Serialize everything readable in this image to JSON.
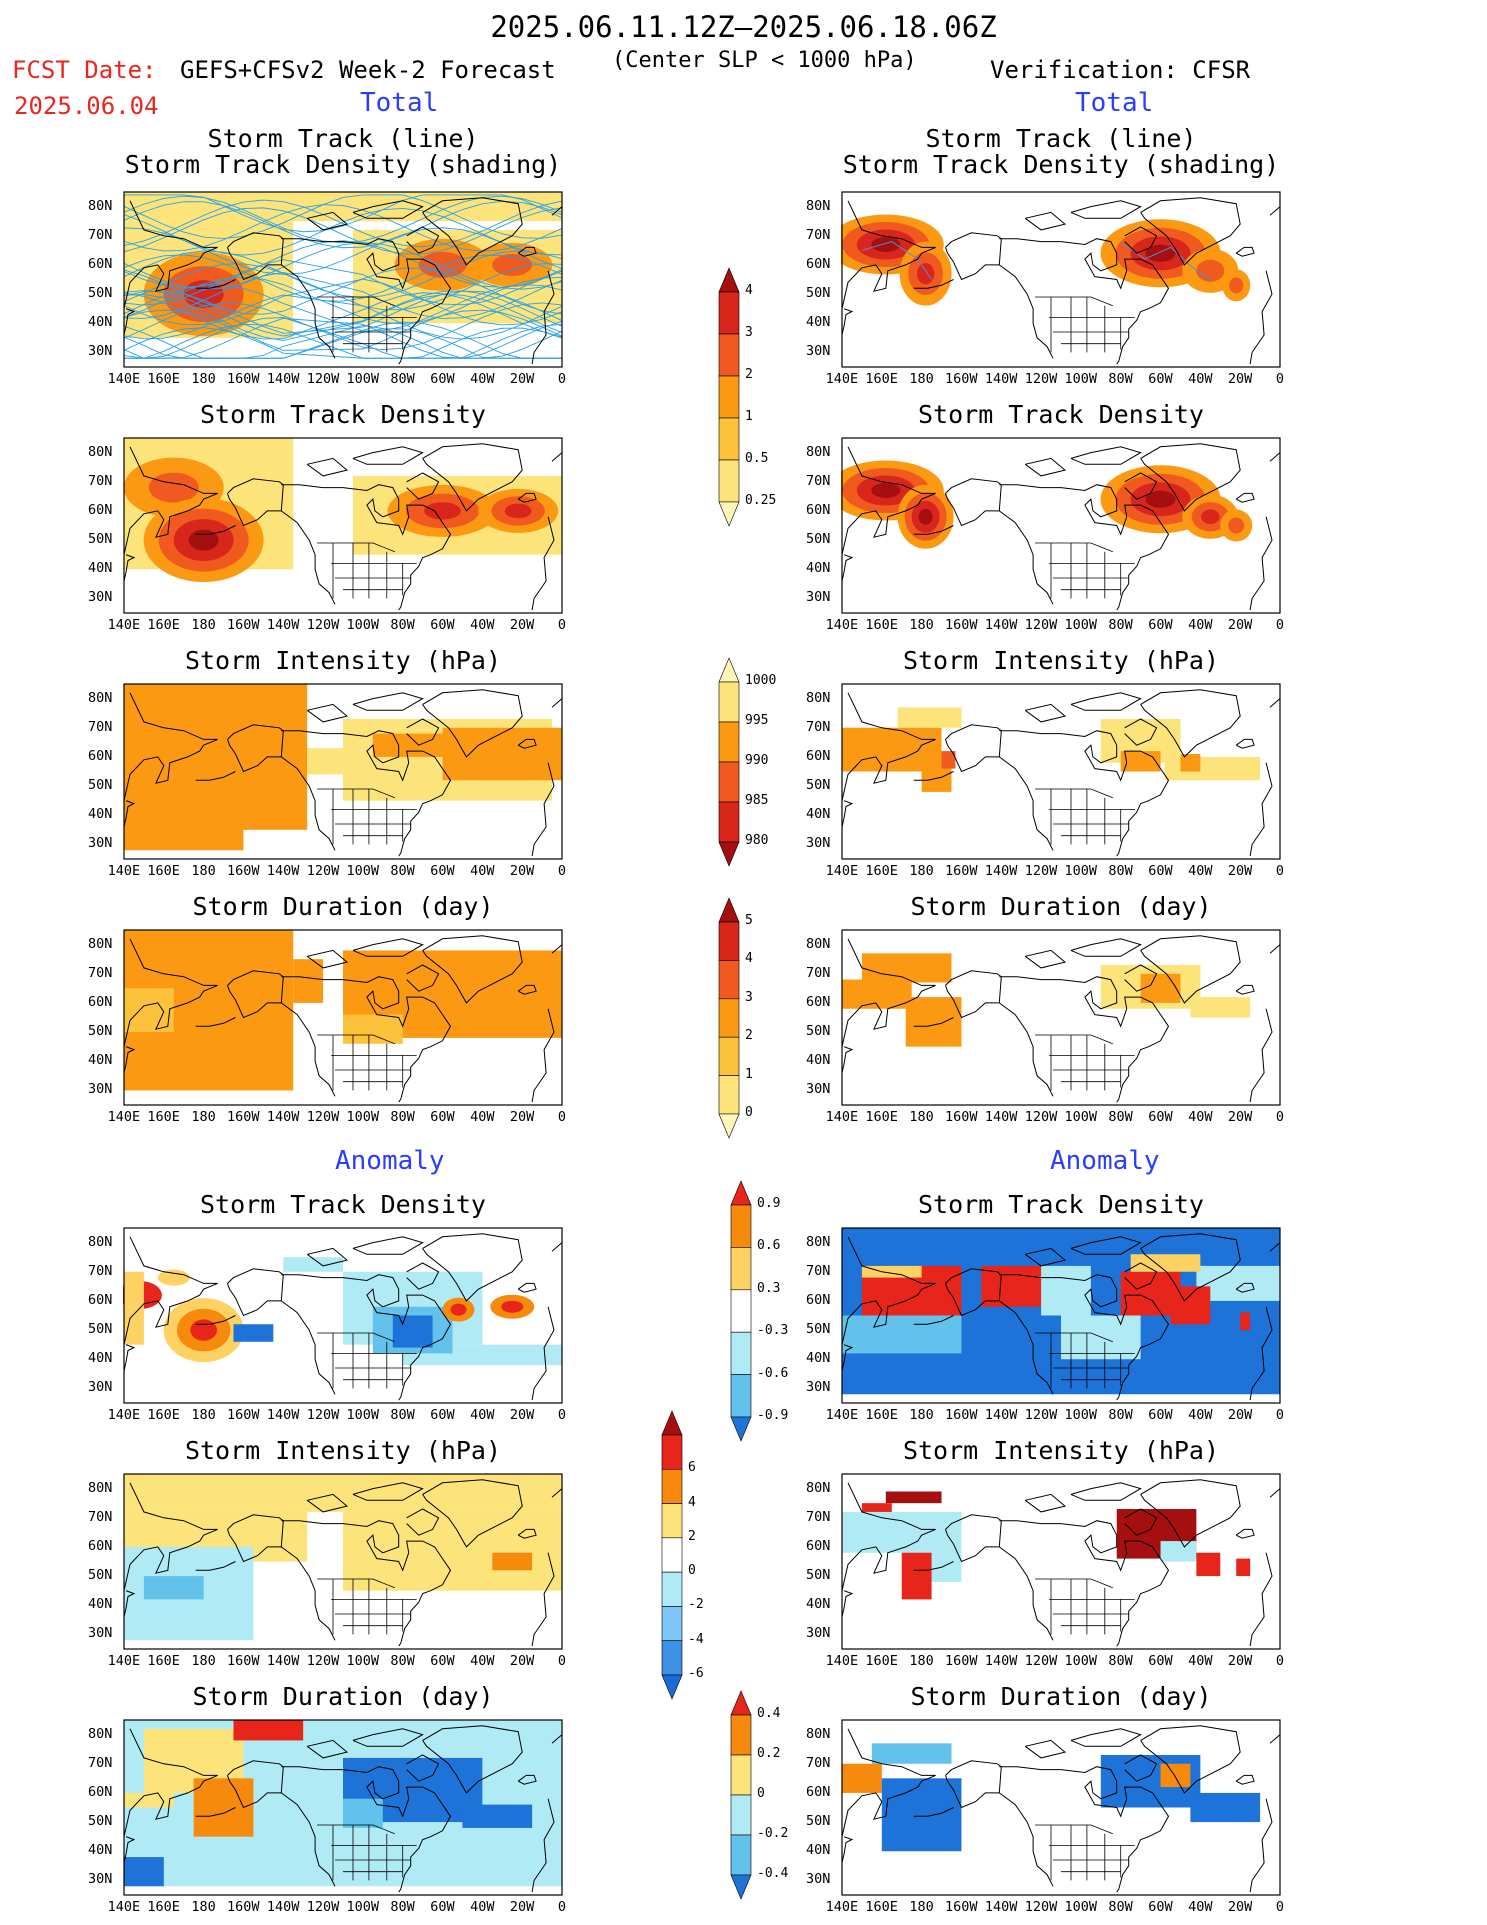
{
  "header": {
    "period": "2025.06.11.12Z–2025.06.18.06Z",
    "fcst_label": "FCST Date:",
    "fcst_date": "2025.06.04",
    "forecast": "GEFS+CFSv2 Week-2 Forecast",
    "criterion": "(Center SLP < 1000 hPa)",
    "verification": "Verification: CFSR"
  },
  "sections": {
    "total": "Total",
    "anomaly": "Anomaly"
  },
  "axes": {
    "lat_labels": [
      "80N",
      "70N",
      "60N",
      "50N",
      "40N",
      "30N"
    ],
    "lon_labels": [
      "140E",
      "160E",
      "180",
      "160W",
      "140W",
      "120W",
      "100W",
      "80W",
      "60W",
      "40W",
      "20W",
      "0"
    ]
  },
  "panels": [
    {
      "id": "fc-track",
      "col": "left",
      "title_l1": "Storm Track (line)",
      "title_l2": "Storm Track Density (shading)"
    },
    {
      "id": "vr-track",
      "col": "right",
      "title_l1": "Storm Track (line)",
      "title_l2": "Storm Track Density (shading)"
    },
    {
      "id": "fc-density",
      "col": "left",
      "title_l1": "Storm Track Density"
    },
    {
      "id": "vr-density",
      "col": "right",
      "title_l1": "Storm Track Density"
    },
    {
      "id": "fc-intensity",
      "col": "left",
      "title_l1": "Storm Intensity (hPa)"
    },
    {
      "id": "vr-intensity",
      "col": "right",
      "title_l1": "Storm Intensity (hPa)"
    },
    {
      "id": "fc-duration",
      "col": "left",
      "title_l1": "Storm Duration (day)"
    },
    {
      "id": "vr-duration",
      "col": "right",
      "title_l1": "Storm Duration (day)"
    },
    {
      "id": "fc-anom-density",
      "col": "left",
      "title_l1": "Storm Track Density"
    },
    {
      "id": "vr-anom-density",
      "col": "right",
      "title_l1": "Storm Track Density"
    },
    {
      "id": "fc-anom-intensity",
      "col": "left",
      "title_l1": "Storm Intensity (hPa)"
    },
    {
      "id": "vr-anom-intensity",
      "col": "right",
      "title_l1": "Storm Intensity (hPa)"
    },
    {
      "id": "fc-anom-duration",
      "col": "left",
      "title_l1": "Storm Duration (day)"
    },
    {
      "id": "vr-anom-duration",
      "col": "right",
      "title_l1": "Storm Duration (day)"
    }
  ],
  "colorbars": {
    "density": {
      "labels": [
        "4",
        "3",
        "2",
        "1",
        "0.5",
        "0.25"
      ],
      "colors": [
        "#a50f0f",
        "#d8261c",
        "#f05a1e",
        "#fb9a12",
        "#fcc23c",
        "#fde47a",
        "#fff6b8"
      ]
    },
    "intensity": {
      "labels": [
        "1000",
        "995",
        "990",
        "985",
        "980"
      ],
      "colors": [
        "#fff6b8",
        "#fde47a",
        "#fb9a12",
        "#f05a1e",
        "#d8261c",
        "#a50f0f"
      ]
    },
    "duration": {
      "labels": [
        "5",
        "4",
        "3",
        "2",
        "1",
        "0"
      ],
      "colors": [
        "#a50f0f",
        "#d8261c",
        "#f05a1e",
        "#fb9a12",
        "#fcc23c",
        "#fde47a",
        "#fff6b8"
      ]
    },
    "anom_density": {
      "labels": [
        "0.9",
        "0.6",
        "0.3",
        "-0.3",
        "-0.6",
        "-0.9"
      ],
      "colors": [
        "#e8251a",
        "#f58a0c",
        "#fdd262",
        "#ffffff",
        "#b0eaf5",
        "#63c2ec",
        "#1d73d8"
      ]
    },
    "anom_intensity": {
      "labels": [
        "6",
        "4",
        "2",
        "0",
        "-2",
        "-4",
        "-6"
      ],
      "colors": [
        "#a50f0f",
        "#e8251a",
        "#f58a0c",
        "#fde47a",
        "#ffffff",
        "#b0eaf5",
        "#7dc6f5",
        "#3e8fe6",
        "#1a6ad8"
      ]
    },
    "anom_duration": {
      "labels": [
        "0.4",
        "0.2",
        "0",
        "-0.2",
        "-0.4"
      ],
      "colors": [
        "#e8251a",
        "#f58a0c",
        "#fde47a",
        "#b0eaf5",
        "#63c2ec",
        "#1d73d8"
      ]
    }
  }
}
